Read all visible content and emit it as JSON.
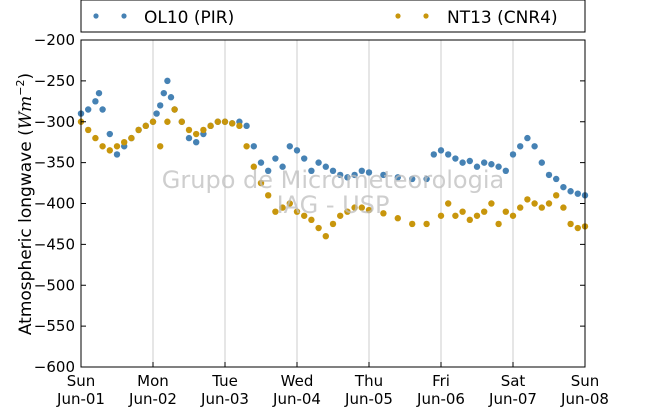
{
  "chart_data": {
    "type": "scatter",
    "ylabel_text": "Atmospheric longwave (",
    "ylabel_unit": "Wm",
    "ylabel_exp": "−2",
    "ylabel_close": ")",
    "xlabel": "",
    "ylim": [
      -600,
      -200
    ],
    "xlim": [
      0,
      7
    ],
    "yticks": [
      -200,
      -250,
      -300,
      -350,
      -400,
      -450,
      -500,
      -550,
      -600
    ],
    "xticks": [
      {
        "day": "Sun",
        "date": "Jun-01"
      },
      {
        "day": "Mon",
        "date": "Jun-02"
      },
      {
        "day": "Tue",
        "date": "Jun-03"
      },
      {
        "day": "Wed",
        "date": "Jun-04"
      },
      {
        "day": "Thu",
        "date": "Jun-05"
      },
      {
        "day": "Fri",
        "date": "Jun-06"
      },
      {
        "day": "Sat",
        "date": "Jun-07"
      },
      {
        "day": "Sun",
        "date": "Jun-08"
      }
    ],
    "grid": "vertical",
    "legend_placement": "top",
    "watermark_line1": "Grupo de Micrometeorologia",
    "watermark_line2": "IAG - USP",
    "series": [
      {
        "name": "OL10 (PIR)",
        "color": "#4682b4",
        "x": [
          0.0,
          0.1,
          0.2,
          0.25,
          0.3,
          0.4,
          0.5,
          0.6,
          0.7,
          0.8,
          0.9,
          1.0,
          1.05,
          1.1,
          1.15,
          1.2,
          1.25,
          1.3,
          1.4,
          1.5,
          1.6,
          1.7,
          1.8,
          1.9,
          2.0,
          2.1,
          2.2,
          2.3,
          2.4,
          2.5,
          2.6,
          2.7,
          2.8,
          2.9,
          3.0,
          3.1,
          3.2,
          3.3,
          3.4,
          3.5,
          3.6,
          3.7,
          3.8,
          3.9,
          4.0,
          4.2,
          4.4,
          4.6,
          4.8,
          4.9,
          5.0,
          5.1,
          5.2,
          5.3,
          5.4,
          5.5,
          5.6,
          5.7,
          5.8,
          5.9,
          6.0,
          6.1,
          6.2,
          6.3,
          6.4,
          6.5,
          6.6,
          6.7,
          6.8,
          6.9,
          7.0
        ],
        "y": [
          -290,
          -285,
          -275,
          -265,
          -285,
          -315,
          -340,
          -330,
          -320,
          -310,
          -305,
          -300,
          -290,
          -280,
          -265,
          -250,
          -270,
          -285,
          -300,
          -320,
          -325,
          -315,
          -305,
          -300,
          -300,
          -302,
          -300,
          -305,
          -330,
          -350,
          -360,
          -345,
          -355,
          -330,
          -335,
          -345,
          -360,
          -350,
          -355,
          -360,
          -365,
          -368,
          -365,
          -360,
          -362,
          -365,
          -368,
          -370,
          -370,
          -340,
          -335,
          -340,
          -345,
          -350,
          -348,
          -355,
          -350,
          -352,
          -355,
          -360,
          -340,
          -330,
          -320,
          -330,
          -350,
          -365,
          -370,
          -380,
          -385,
          -388,
          -390
        ]
      },
      {
        "name": "NT13 (CNR4)",
        "color": "#c8960c",
        "x": [
          0.0,
          0.1,
          0.2,
          0.3,
          0.4,
          0.5,
          0.6,
          0.7,
          0.8,
          0.9,
          1.0,
          1.1,
          1.2,
          1.3,
          1.4,
          1.5,
          1.6,
          1.7,
          1.8,
          1.9,
          2.0,
          2.1,
          2.2,
          2.3,
          2.4,
          2.5,
          2.6,
          2.7,
          2.8,
          2.9,
          3.0,
          3.1,
          3.2,
          3.3,
          3.4,
          3.5,
          3.6,
          3.7,
          3.8,
          3.9,
          4.0,
          4.2,
          4.4,
          4.6,
          4.8,
          5.0,
          5.1,
          5.2,
          5.3,
          5.4,
          5.5,
          5.6,
          5.7,
          5.8,
          5.9,
          6.0,
          6.1,
          6.2,
          6.3,
          6.4,
          6.5,
          6.6,
          6.7,
          6.8,
          6.9,
          7.0
        ],
        "y": [
          -300,
          -310,
          -320,
          -330,
          -335,
          -330,
          -325,
          -320,
          -310,
          -305,
          -300,
          -330,
          -300,
          -285,
          -300,
          -310,
          -315,
          -310,
          -305,
          -300,
          -300,
          -302,
          -305,
          -330,
          -355,
          -375,
          -390,
          -410,
          -405,
          -400,
          -410,
          -415,
          -420,
          -430,
          -440,
          -425,
          -415,
          -410,
          -405,
          -405,
          -408,
          -412,
          -418,
          -425,
          -425,
          -415,
          -400,
          -415,
          -410,
          -420,
          -415,
          -410,
          -400,
          -425,
          -410,
          -415,
          -405,
          -395,
          -400,
          -405,
          -400,
          -390,
          -405,
          -425,
          -430,
          -428
        ]
      }
    ]
  }
}
